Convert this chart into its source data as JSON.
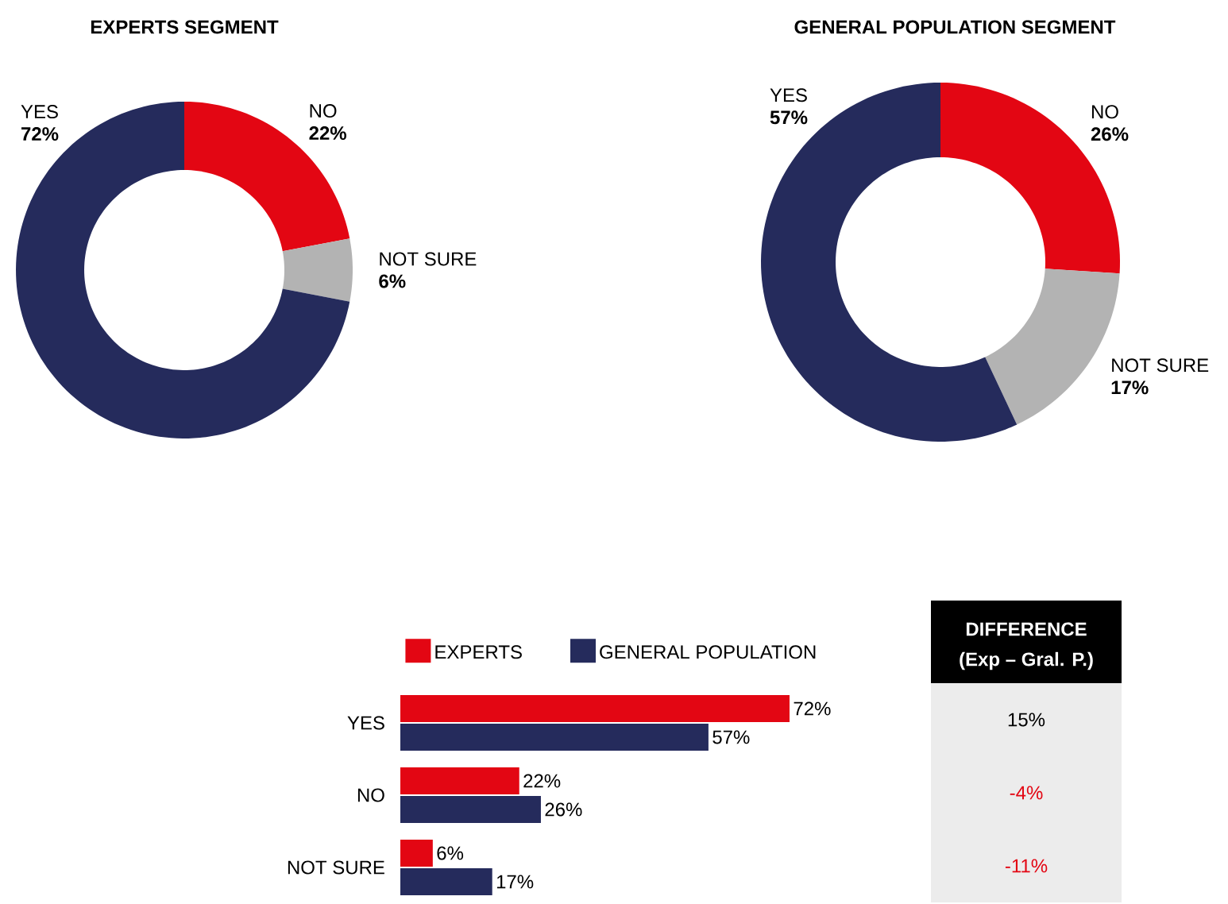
{
  "chart_data": [
    {
      "type": "donut",
      "title": "EXPERTS SEGMENT",
      "categories": [
        "NO",
        "NOT SURE",
        "YES"
      ],
      "values": [
        22,
        6,
        72
      ],
      "value_labels": [
        "22%",
        "6%",
        "72%"
      ],
      "colors": [
        "#e30613",
        "#b3b3b3",
        "#252b5c"
      ]
    },
    {
      "type": "donut",
      "title": "GENERAL POPULATION SEGMENT",
      "categories": [
        "NO",
        "NOT SURE",
        "YES"
      ],
      "values": [
        26,
        17,
        57
      ],
      "value_labels": [
        "26%",
        "17%",
        "57%"
      ],
      "colors": [
        "#e30613",
        "#b3b3b3",
        "#252b5c"
      ]
    },
    {
      "type": "bar",
      "orientation": "horizontal",
      "legend": "top",
      "categories": [
        "YES",
        "NO",
        "NOT SURE"
      ],
      "series": [
        {
          "name": "EXPERTS",
          "color": "#e30613",
          "values": [
            72,
            22,
            6
          ],
          "value_labels": [
            "72%",
            "22%",
            "6%"
          ]
        },
        {
          "name": "GENERAL POPULATION",
          "color": "#252b5c",
          "values": [
            57,
            26,
            17
          ],
          "value_labels": [
            "57%",
            "26%",
            "17%"
          ]
        }
      ]
    },
    {
      "type": "other",
      "title": "DIFFERENCE",
      "subtitle": "(Exp – Gral. P.)",
      "annotations": [
        "15%",
        "-4%",
        "-11%"
      ],
      "colors": [
        "#000000",
        "#e30613",
        "#e30613"
      ]
    }
  ]
}
